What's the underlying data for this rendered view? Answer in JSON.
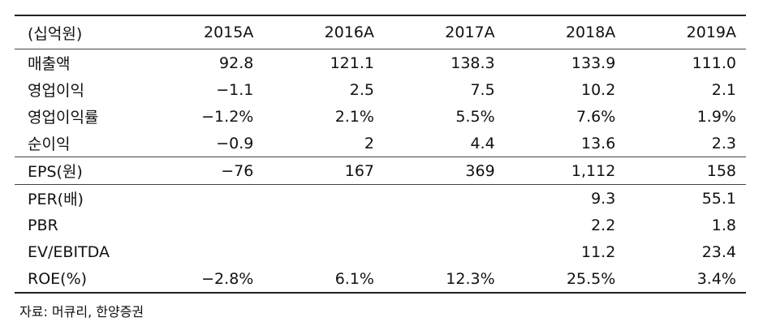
{
  "table": {
    "header": [
      "(십억원)",
      "2015A",
      "2016A",
      "2017A",
      "2018A",
      "2019A"
    ],
    "rows": [
      {
        "label": "매출액",
        "values": [
          "92.8",
          "121.1",
          "138.3",
          "133.9",
          "111.0"
        ]
      },
      {
        "label": "영업이익",
        "values": [
          "−1.1",
          "2.5",
          "7.5",
          "10.2",
          "2.1"
        ]
      },
      {
        "label": "영업이익률",
        "values": [
          "−1.2%",
          "2.1%",
          "5.5%",
          "7.6%",
          "1.9%"
        ]
      },
      {
        "label": "순이익",
        "values": [
          "−0.9",
          "2",
          "4.4",
          "13.6",
          "2.3"
        ]
      },
      {
        "label": "EPS(원)",
        "values": [
          "−76",
          "167",
          "369",
          "1,112",
          "158"
        ]
      },
      {
        "label": "PER(배)",
        "values": [
          "",
          "",
          "",
          "9.3",
          "55.1"
        ]
      },
      {
        "label": "PBR",
        "values": [
          "",
          "",
          "",
          "2.2",
          "1.8"
        ]
      },
      {
        "label": "EV/EBITDA",
        "values": [
          "",
          "",
          "",
          "11.2",
          "23.4"
        ]
      },
      {
        "label": "ROE(%)",
        "values": [
          "−2.8%",
          "6.1%",
          "12.3%",
          "25.5%",
          "3.4%"
        ]
      }
    ]
  },
  "source": "자료: 머큐리, 한양증권"
}
